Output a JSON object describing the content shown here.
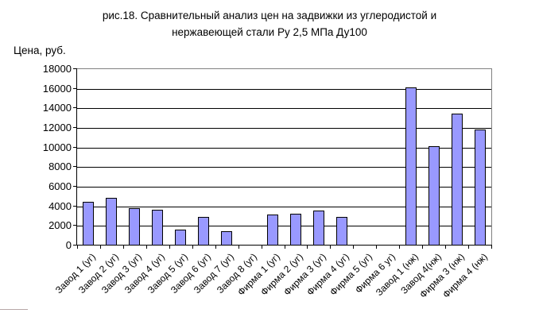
{
  "figure": {
    "title_line1": "рис.18. Сравнительный анализ цен на задвижки из углеродистой и",
    "title_line2": "нержавеющей стали Ру 2,5 МПа Ду100"
  },
  "chart_data": {
    "type": "bar",
    "title": "рис.18. Сравнительный анализ цен на задвижки из углеродистой и нержавеющей стали Ру 2,5 МПа Ду100",
    "ylabel": "Цена, руб.",
    "xlabel": "",
    "categories": [
      "Завод 1 (уг)",
      "Завод 2 (уг)",
      "Завод 3 (уг)",
      "Завод 4 (уг)",
      "Завод 5 (уг)",
      "Завод 6 (уг)",
      "Завод 7 (уг)",
      "Завод 8 (уг)",
      "Фирма 1 (уг)",
      "Фирма 2 (уг)",
      "Фирма 3 (уг)",
      "Фирма 4 (уг)",
      "Фирма 5 (уг)",
      "Фирма 6 уг)",
      "Завод 1 (нж)",
      "Завод 4(нж)",
      "Фирма 3 (нж)",
      "Фирма 4 (нж)"
    ],
    "values": [
      4500,
      4900,
      3800,
      3650,
      1650,
      2950,
      1500,
      0,
      3150,
      3250,
      3600,
      2900,
      0,
      0,
      16100,
      10150,
      13450,
      11800
    ],
    "ylim": [
      0,
      18000
    ],
    "yticks": [
      0,
      2000,
      4000,
      6000,
      8000,
      10000,
      12000,
      14000,
      16000,
      18000
    ],
    "grid": true,
    "legend": "none",
    "bar_color": "#9999FF",
    "bar_border_color": "#000000"
  }
}
